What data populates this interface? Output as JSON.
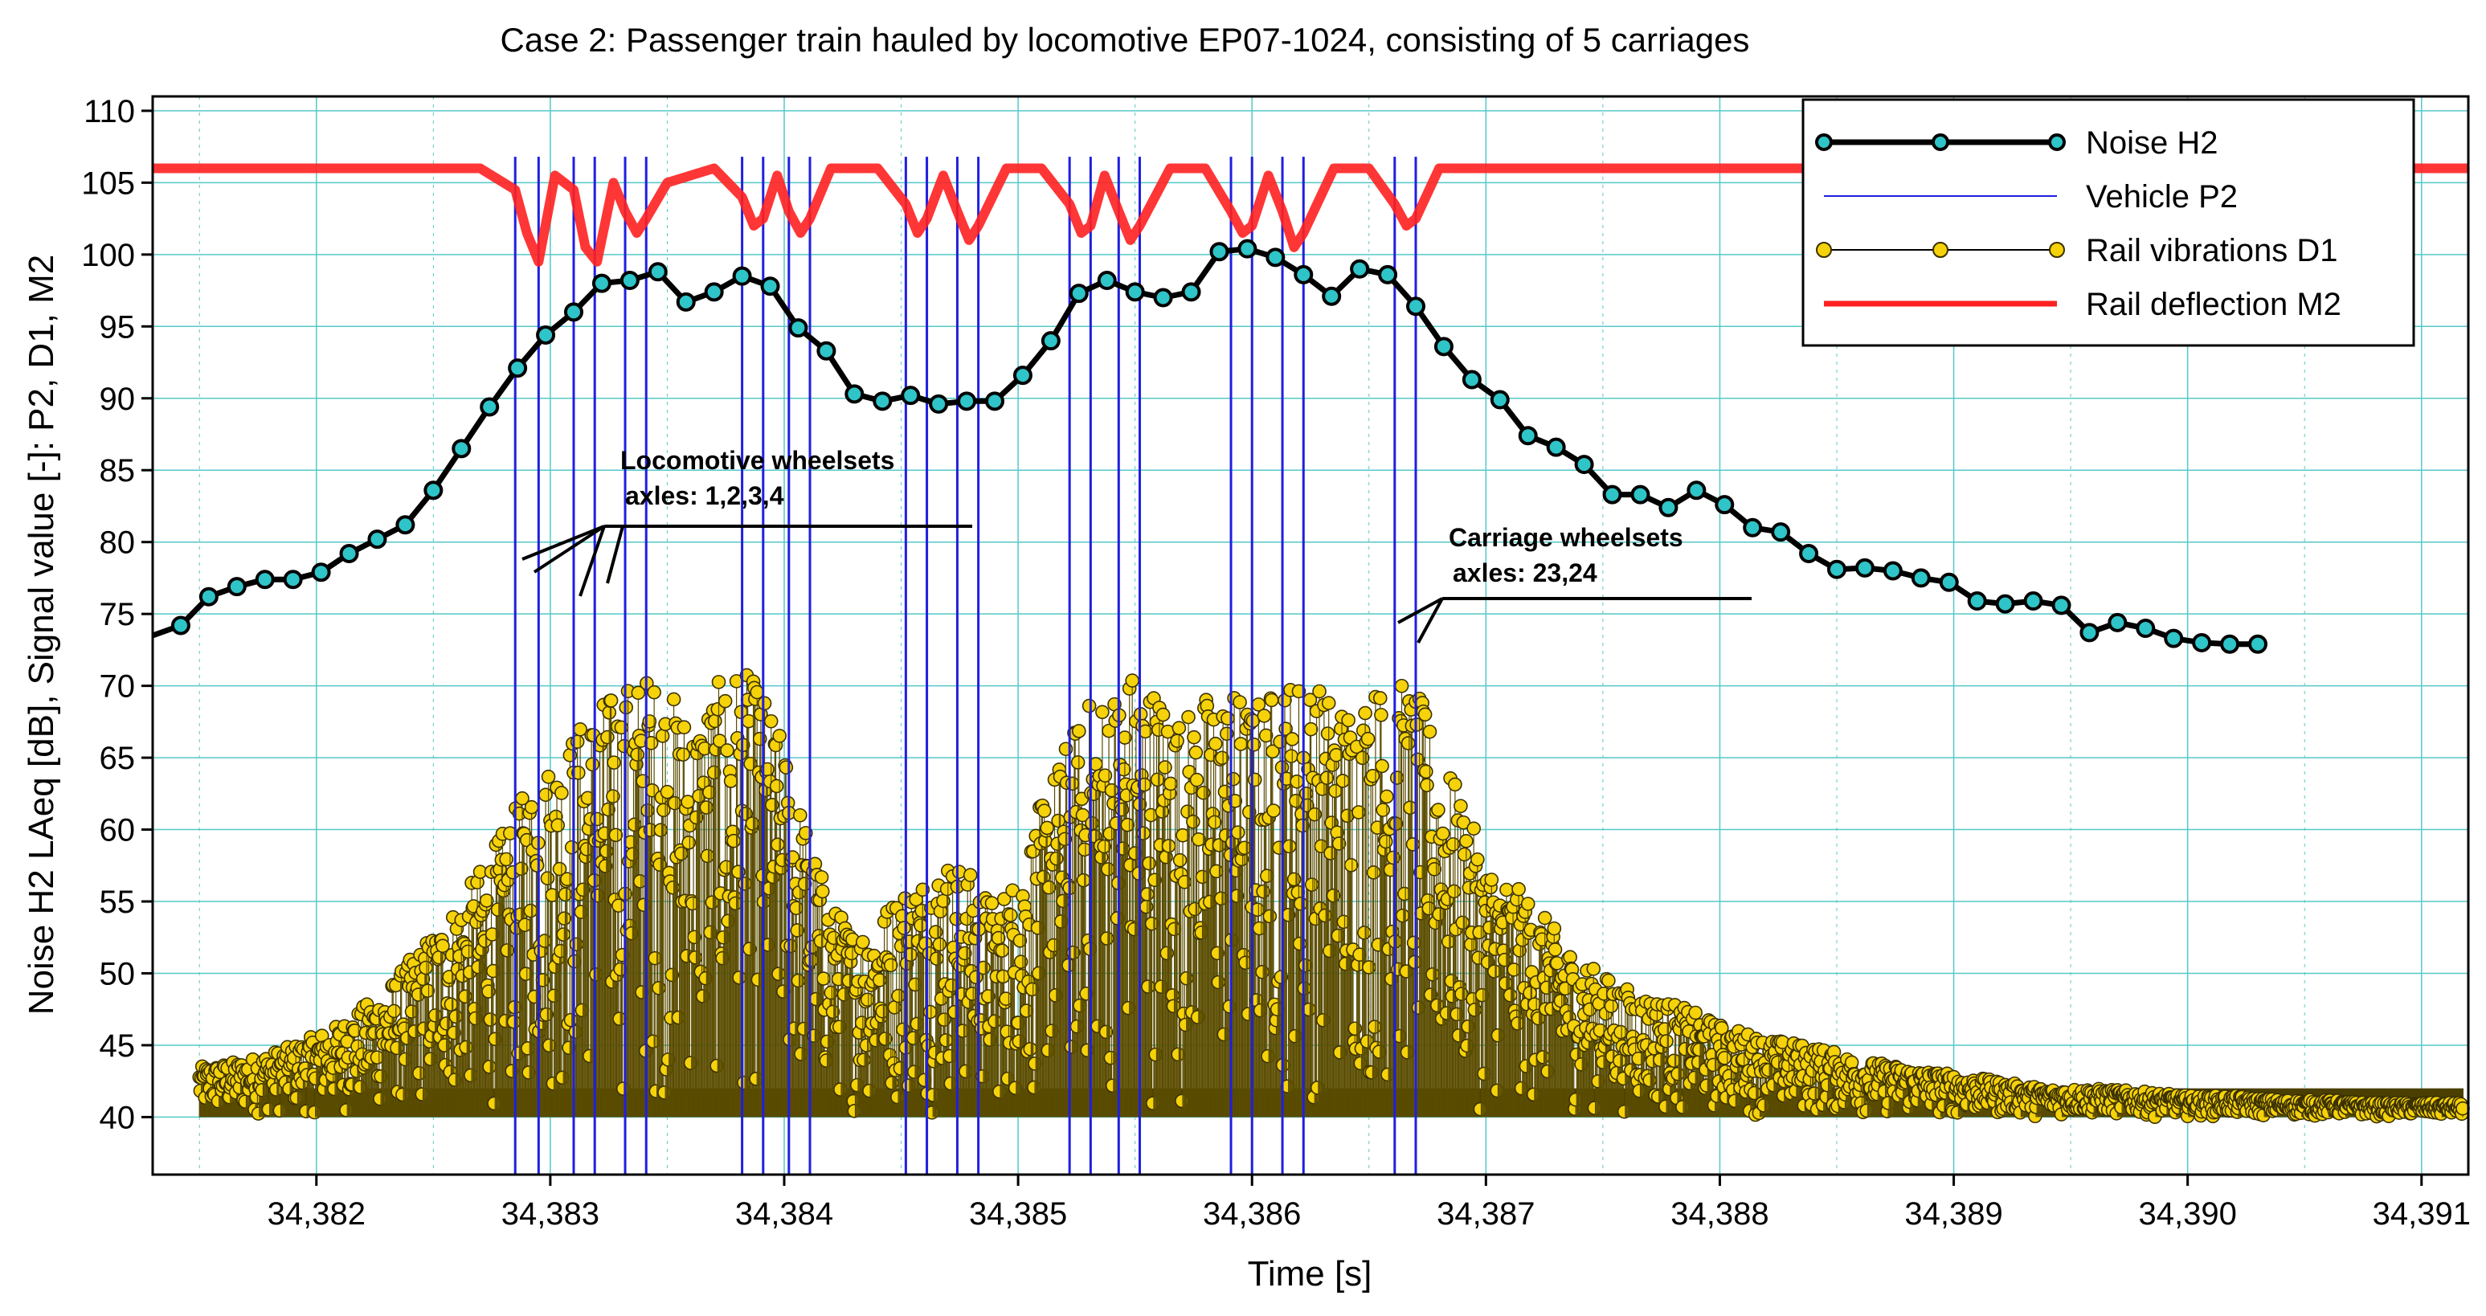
{
  "chart_data": {
    "type": "line",
    "title": "Case 2: Passenger train hauled by locomotive EP07-1024, consisting of 5 carriages",
    "xlabel": "Time [s]",
    "ylabel": "Noise H2 LAeq [dB], Signal value [-]: P2, D1, M2",
    "xlim": [
      34381.3,
      34391.2
    ],
    "ylim": [
      36,
      111
    ],
    "x_ticks": [
      34382,
      34383,
      34384,
      34385,
      34386,
      34387,
      34388,
      34389,
      34390,
      34391
    ],
    "x_tick_labels": [
      "34,382",
      "34,383",
      "34,384",
      "34,385",
      "34,386",
      "34,387",
      "34,388",
      "34,389",
      "34,390",
      "34,391"
    ],
    "y_ticks": [
      40,
      45,
      50,
      55,
      60,
      65,
      70,
      75,
      80,
      85,
      90,
      95,
      100,
      105,
      110
    ],
    "grid": true,
    "legend_position": "top-right",
    "colors": {
      "noise": "#000000",
      "noise_marker": "#2ec4c8",
      "vehicle": "#1f1fe0",
      "vibration_fill": "#f5d20a",
      "vibration_edge": "#3a3000",
      "deflection": "#ff2020",
      "grid": "#55c8c8"
    },
    "series": [
      {
        "name": "Noise H2",
        "style": "line-markers",
        "x": [
          34381.3,
          34381.42,
          34381.54,
          34381.66,
          34381.78,
          34381.9,
          34382.02,
          34382.14,
          34382.26,
          34382.38,
          34382.5,
          34382.62,
          34382.74,
          34382.86,
          34382.98,
          34383.1,
          34383.22,
          34383.34,
          34383.46,
          34383.58,
          34383.7,
          34383.82,
          34383.94,
          34384.06,
          34384.18,
          34384.3,
          34384.42,
          34384.54,
          34384.66,
          34384.78,
          34384.9,
          34385.02,
          34385.14,
          34385.26,
          34385.38,
          34385.5,
          34385.62,
          34385.74,
          34385.86,
          34385.98,
          34386.1,
          34386.22,
          34386.34,
          34386.46,
          34386.58,
          34386.7,
          34386.82,
          34386.94,
          34387.06,
          34387.18,
          34387.3,
          34387.42,
          34387.54,
          34387.66,
          34387.78,
          34387.9,
          34388.02,
          34388.14,
          34388.26,
          34388.38,
          34388.5,
          34388.62,
          34388.74,
          34388.86,
          34388.98,
          34389.1,
          34389.22,
          34389.34,
          34389.46,
          34389.58,
          34389.7,
          34389.82,
          34389.94,
          34390.06,
          34390.18,
          34390.3
        ],
        "values": [
          73.5,
          74.2,
          76.2,
          76.9,
          77.4,
          77.4,
          77.9,
          79.2,
          80.2,
          81.2,
          83.6,
          86.5,
          89.4,
          92.1,
          94.4,
          96.0,
          98.0,
          98.2,
          98.8,
          96.7,
          97.4,
          98.5,
          97.8,
          94.9,
          93.3,
          90.3,
          89.8,
          90.2,
          89.6,
          89.8,
          89.8,
          91.6,
          94.0,
          97.3,
          98.2,
          97.4,
          97.0,
          97.4,
          100.2,
          100.4,
          99.8,
          98.6,
          97.1,
          99.0,
          98.6,
          96.4,
          93.6,
          91.3,
          89.9,
          87.4,
          86.6,
          85.4,
          83.3,
          83.3,
          82.4,
          83.6,
          82.6,
          81.0,
          80.7,
          79.2,
          78.1,
          78.2,
          78.0,
          77.5,
          77.2,
          75.9,
          75.7,
          75.9,
          75.6,
          73.7,
          74.4,
          74.0,
          73.3,
          73.0,
          72.9,
          72.9
        ]
      },
      {
        "name": "Vehicle P2",
        "style": "vertical-lines",
        "x": [
          34382.85,
          34382.95,
          34383.1,
          34383.19,
          34383.32,
          34383.41,
          34383.82,
          34383.91,
          34384.02,
          34384.11,
          34384.52,
          34384.61,
          34384.74,
          34384.83,
          34385.22,
          34385.31,
          34385.43,
          34385.52,
          34385.91,
          34386.0,
          34386.13,
          34386.22,
          34386.61,
          34386.7
        ]
      },
      {
        "name": "Rail vibrations D1",
        "style": "stem-markers",
        "baseline": 40,
        "x": [
          34381.5,
          34381.7,
          34381.9,
          34382.1,
          34382.3,
          34382.5,
          34382.65,
          34382.8,
          34382.9,
          34383.0,
          34383.1,
          34383.2,
          34383.3,
          34383.4,
          34383.5,
          34383.6,
          34383.7,
          34383.8,
          34383.9,
          34384.0,
          34384.1,
          34384.2,
          34384.3,
          34384.4,
          34384.5,
          34384.6,
          34384.7,
          34384.8,
          34384.9,
          34385.0,
          34385.1,
          34385.2,
          34385.3,
          34385.4,
          34385.5,
          34385.6,
          34385.7,
          34385.8,
          34385.9,
          34386.0,
          34386.1,
          34386.2,
          34386.3,
          34386.4,
          34386.5,
          34386.6,
          34386.7,
          34386.8,
          34386.9,
          34387.0,
          34387.2,
          34387.4,
          34387.6,
          34387.8,
          34388.0,
          34388.2,
          34388.4,
          34388.6,
          34388.8,
          34389.0,
          34389.2,
          34389.4,
          34389.6,
          34389.8,
          34390.0,
          34390.2,
          34390.4,
          34390.6,
          34390.8,
          34391.0
        ],
        "values": [
          43.5,
          44.0,
          45.0,
          46.5,
          49.0,
          53.0,
          56.0,
          60.0,
          63.0,
          65.0,
          67.0,
          69.0,
          70.0,
          71.0,
          70.0,
          68.0,
          70.0,
          71.5,
          70.0,
          66.0,
          60.0,
          55.0,
          53.0,
          54.0,
          56.0,
          57.0,
          58.0,
          57.0,
          55.0,
          57.0,
          62.0,
          66.0,
          69.0,
          70.0,
          71.5,
          70.0,
          68.0,
          69.5,
          70.0,
          69.0,
          70.0,
          71.0,
          70.0,
          69.0,
          70.0,
          70.5,
          70.0,
          66.0,
          62.0,
          58.0,
          55.0,
          51.0,
          49.0,
          48.0,
          46.5,
          45.5,
          45.0,
          44.0,
          43.5,
          43.0,
          42.5,
          42.0,
          42.0,
          41.8,
          41.5,
          41.5,
          41.2,
          41.2,
          41.0,
          41.0
        ]
      },
      {
        "name": "Rail deflection M2",
        "style": "line",
        "baseline": 106,
        "x": [
          34381.3,
          34382.7,
          34382.85,
          34382.9,
          34382.95,
          34383.02,
          34383.1,
          34383.15,
          34383.2,
          34383.27,
          34383.32,
          34383.37,
          34383.41,
          34383.5,
          34383.7,
          34383.82,
          34383.87,
          34383.91,
          34383.97,
          34384.02,
          34384.07,
          34384.11,
          34384.2,
          34384.4,
          34384.52,
          34384.57,
          34384.61,
          34384.68,
          34384.74,
          34384.79,
          34384.83,
          34384.95,
          34385.1,
          34385.22,
          34385.27,
          34385.31,
          34385.37,
          34385.43,
          34385.48,
          34385.52,
          34385.65,
          34385.8,
          34385.91,
          34385.96,
          34386.0,
          34386.07,
          34386.13,
          34386.18,
          34386.22,
          34386.35,
          34386.5,
          34386.61,
          34386.66,
          34386.7,
          34386.8,
          34391.2
        ],
        "values": [
          106,
          106,
          104.5,
          101.5,
          99.5,
          105.5,
          104.5,
          100.5,
          99.5,
          105.0,
          103.0,
          101.5,
          102.5,
          105.0,
          106.0,
          104.0,
          102.0,
          102.5,
          105.5,
          103.0,
          101.5,
          102.5,
          106.0,
          106.0,
          103.5,
          101.5,
          102.5,
          105.5,
          103.0,
          101.0,
          102.0,
          106.0,
          106.0,
          103.5,
          101.5,
          102.0,
          105.5,
          103.0,
          101.0,
          102.0,
          106.0,
          106.0,
          103.0,
          101.5,
          102.0,
          105.5,
          103.0,
          100.5,
          101.5,
          106.0,
          106.0,
          103.5,
          102.0,
          102.5,
          106.0,
          106.0
        ]
      }
    ],
    "legend": {
      "entries": [
        "Noise H2",
        "Vehicle P2",
        "Rail vibrations D1",
        "Rail deflection M2"
      ]
    },
    "annotations": [
      {
        "line1": "Locomotive wheelsets",
        "line2": "axles: 1,2,3,4"
      },
      {
        "line1": "Carriage wheelsets",
        "line2": "axles: 23,24"
      }
    ]
  }
}
